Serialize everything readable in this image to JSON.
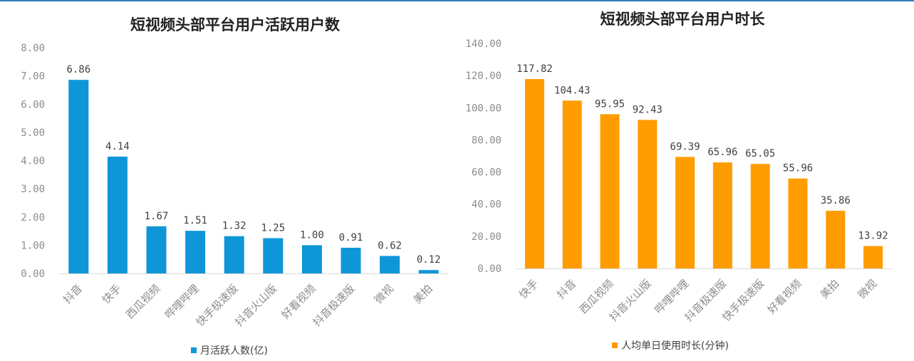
{
  "chart_data": [
    {
      "type": "bar",
      "title": "短视频头部平台用户活跃用户数",
      "categories": [
        "抖音",
        "快手",
        "西瓜视频",
        "哔哩哔哩",
        "快手极速版",
        "抖音火山版",
        "好看视频",
        "抖音极速版",
        "微视",
        "美拍"
      ],
      "series": [
        {
          "name": "月活跃人数(亿)",
          "values": [
            6.86,
            4.14,
            1.67,
            1.51,
            1.32,
            1.25,
            1.0,
            0.91,
            0.62,
            0.12
          ],
          "color": "#0f96d9"
        }
      ],
      "data_labels": [
        "6.86",
        "4.14",
        "1.67",
        "1.51",
        "1.32",
        "1.25",
        "1.00",
        "0.91",
        "0.62",
        "0.12"
      ],
      "yticks": [
        "0.00",
        "1.00",
        "2.00",
        "3.00",
        "4.00",
        "5.00",
        "6.00",
        "7.00",
        "8.00"
      ],
      "ylim": [
        0,
        8
      ],
      "grid": false,
      "legend_position": "bottom"
    },
    {
      "type": "bar",
      "title": "短视频头部平台用户时长",
      "categories": [
        "快手",
        "抖音",
        "西瓜视频",
        "抖音火山版",
        "哔哩哔哩",
        "抖音极速版",
        "快手极速版",
        "好看视频",
        "美拍",
        "微视"
      ],
      "series": [
        {
          "name": "人均单日使用时长(分钟)",
          "values": [
            117.82,
            104.43,
            95.95,
            92.43,
            69.39,
            65.96,
            65.05,
            55.96,
            35.86,
            13.92
          ],
          "color": "#ff9c00"
        }
      ],
      "data_labels": [
        "117.82",
        "104.43",
        "95.95",
        "92.43",
        "69.39",
        "65.96",
        "65.05",
        "55.96",
        "35.86",
        "13.92"
      ],
      "yticks": [
        "0.00",
        "20.00",
        "40.00",
        "60.00",
        "80.00",
        "100.00",
        "120.00",
        "140.00"
      ],
      "ylim": [
        0,
        140
      ],
      "grid": false,
      "legend_position": "bottom"
    }
  ]
}
